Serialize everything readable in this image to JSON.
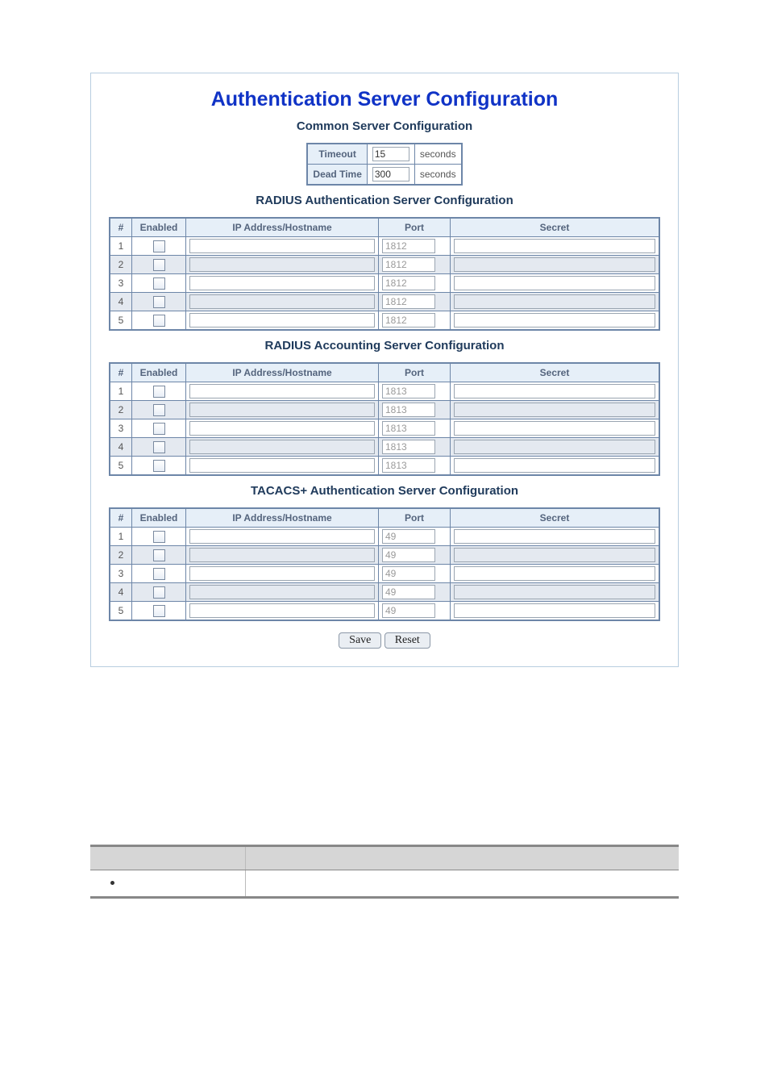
{
  "title": "Authentication Server Configuration",
  "common": {
    "heading": "Common Server Configuration",
    "rows": [
      {
        "label": "Timeout",
        "value": "15",
        "unit": "seconds"
      },
      {
        "label": "Dead Time",
        "value": "300",
        "unit": "seconds"
      }
    ]
  },
  "columns": {
    "num": "#",
    "enabled": "Enabled",
    "host": "IP Address/Hostname",
    "port": "Port",
    "secret": "Secret"
  },
  "sections": [
    {
      "heading": "RADIUS Authentication Server Configuration",
      "default_port": "1812",
      "rows": [
        {
          "n": "1",
          "enabled": false,
          "host": "",
          "port": "1812",
          "secret": ""
        },
        {
          "n": "2",
          "enabled": false,
          "host": "",
          "port": "1812",
          "secret": ""
        },
        {
          "n": "3",
          "enabled": false,
          "host": "",
          "port": "1812",
          "secret": ""
        },
        {
          "n": "4",
          "enabled": false,
          "host": "",
          "port": "1812",
          "secret": ""
        },
        {
          "n": "5",
          "enabled": false,
          "host": "",
          "port": "1812",
          "secret": ""
        }
      ]
    },
    {
      "heading": "RADIUS Accounting Server Configuration",
      "default_port": "1813",
      "rows": [
        {
          "n": "1",
          "enabled": false,
          "host": "",
          "port": "1813",
          "secret": ""
        },
        {
          "n": "2",
          "enabled": false,
          "host": "",
          "port": "1813",
          "secret": ""
        },
        {
          "n": "3",
          "enabled": false,
          "host": "",
          "port": "1813",
          "secret": ""
        },
        {
          "n": "4",
          "enabled": false,
          "host": "",
          "port": "1813",
          "secret": ""
        },
        {
          "n": "5",
          "enabled": false,
          "host": "",
          "port": "1813",
          "secret": ""
        }
      ]
    },
    {
      "heading": "TACACS+ Authentication Server Configuration",
      "default_port": "49",
      "rows": [
        {
          "n": "1",
          "enabled": false,
          "host": "",
          "port": "49",
          "secret": ""
        },
        {
          "n": "2",
          "enabled": false,
          "host": "",
          "port": "49",
          "secret": ""
        },
        {
          "n": "3",
          "enabled": false,
          "host": "",
          "port": "49",
          "secret": ""
        },
        {
          "n": "4",
          "enabled": false,
          "host": "",
          "port": "49",
          "secret": ""
        },
        {
          "n": "5",
          "enabled": false,
          "host": "",
          "port": "49",
          "secret": ""
        }
      ]
    }
  ],
  "buttons": {
    "save": "Save",
    "reset": "Reset"
  },
  "style": {
    "panel_border": "#b8cde0",
    "table_border": "#6d86a8",
    "header_bg": "#e6eff8",
    "header_fg": "#54647d",
    "alt_row_bg": "#e4e9f0",
    "title_color": "#1033c6",
    "section_color": "#203b5c",
    "placeholder_color": "#9a9a9a"
  }
}
